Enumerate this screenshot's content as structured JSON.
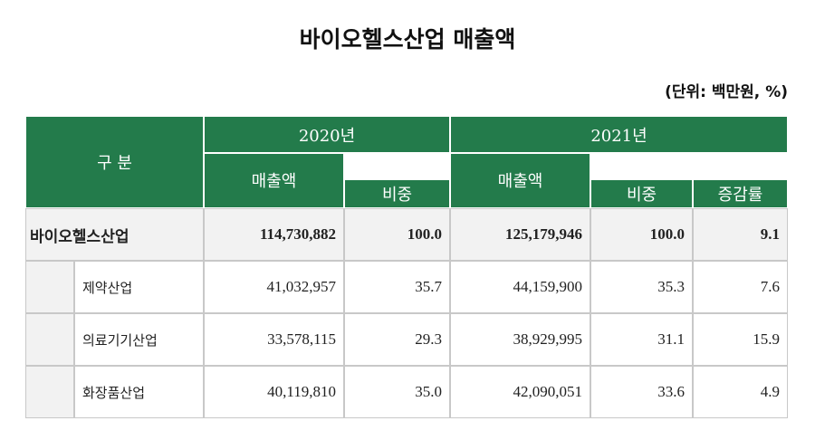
{
  "title": "바이오헬스산업 매출액",
  "unit": "(단위: 백만원, %)",
  "table": {
    "header": {
      "category": "구 분",
      "years": [
        "2020년",
        "2021년"
      ],
      "columns": [
        "매출액",
        "비중",
        "매출액",
        "비중",
        "증감률"
      ]
    },
    "rows": [
      [
        "바이오헬스산업",
        "114,730,882",
        "100.0",
        "125,179,946",
        "100.0",
        "9.1"
      ],
      [
        "제약산업",
        "41,032,957",
        "35.7",
        "44,159,900",
        "35.3",
        "7.6"
      ],
      [
        "의료기기산업",
        "33,578,115",
        "29.3",
        "38,929,995",
        "31.1",
        "15.9"
      ],
      [
        "화장품산업",
        "40,119,810",
        "35.0",
        "42,090,051",
        "33.6",
        "4.9"
      ]
    ]
  }
}
